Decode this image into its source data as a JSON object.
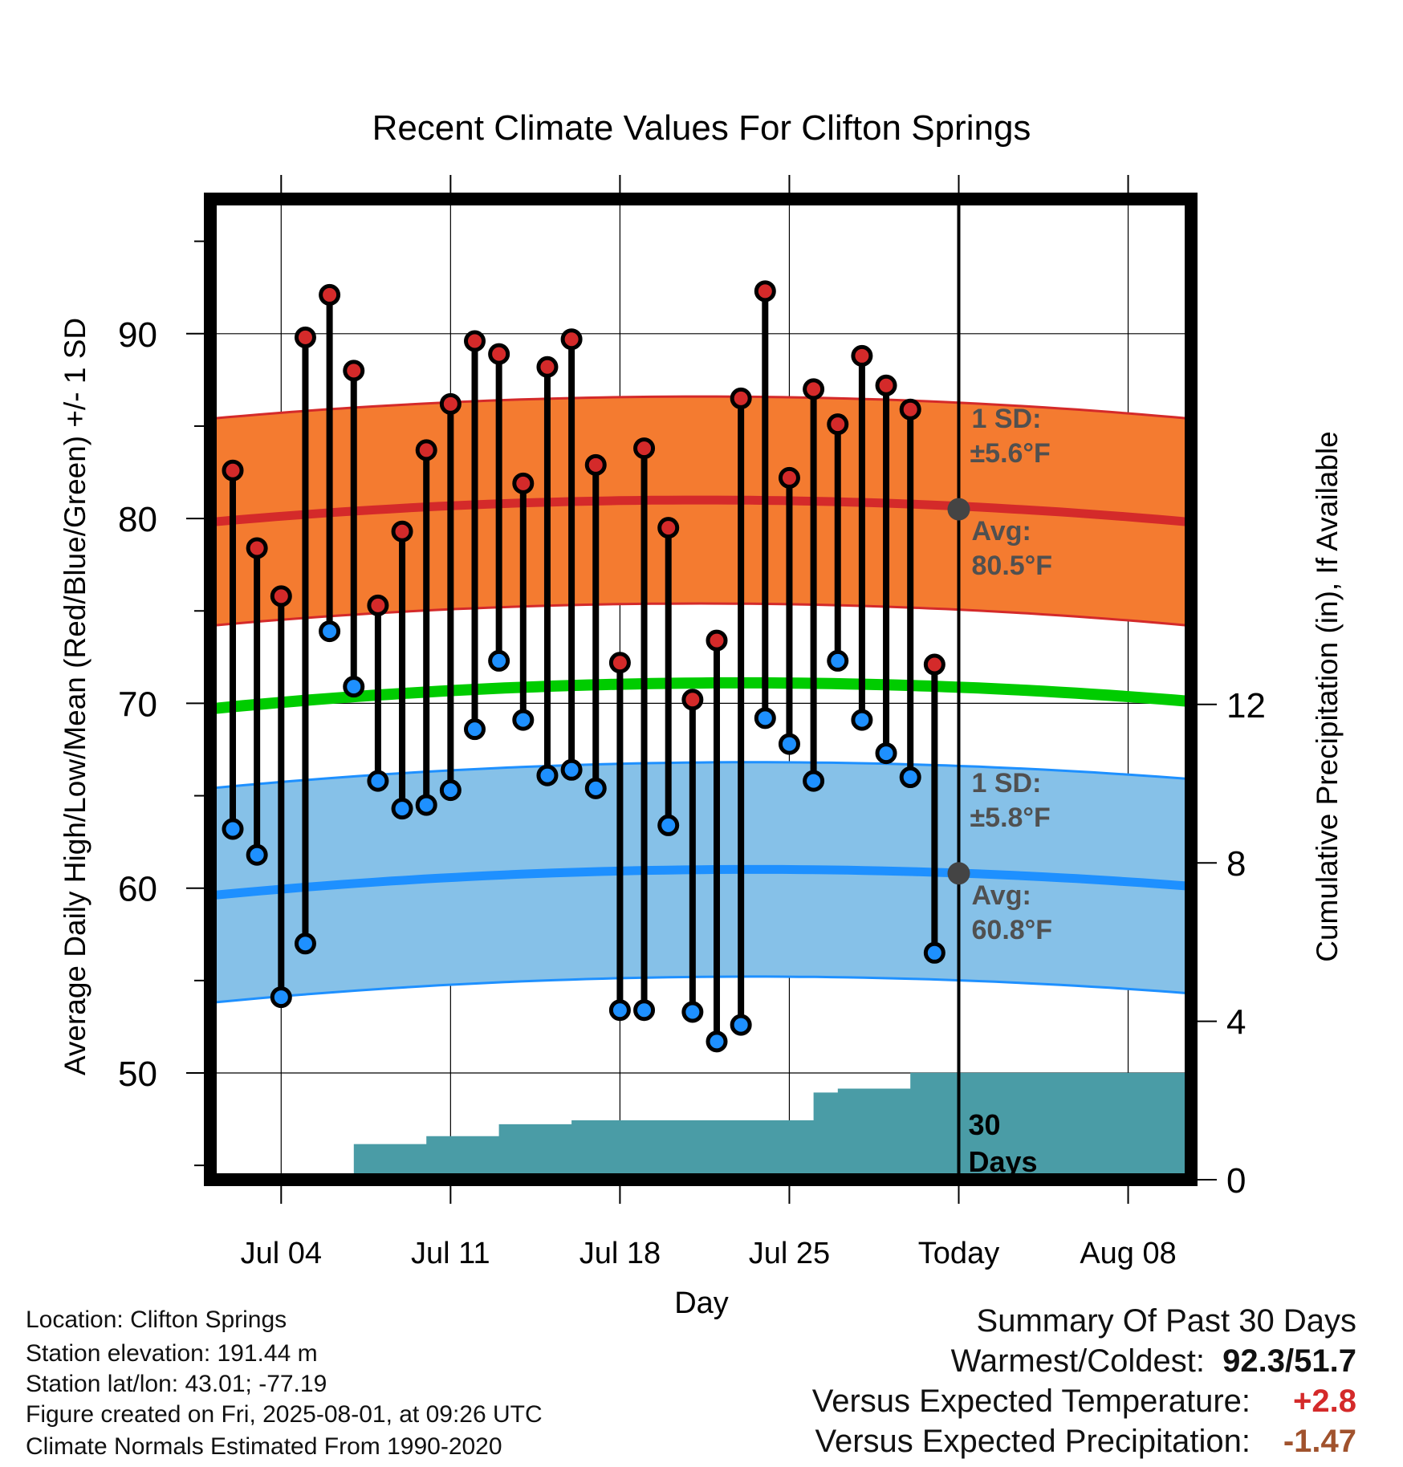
{
  "chart_data": {
    "type": "range-dot",
    "title": "Recent Climate Values For Clifton Springs",
    "xlabel": "Day",
    "ylabel": "Average Daily High/Low/Mean (Red/Blue/Green) +/- 1 SD",
    "y2label": "Cumulative Precipitation (in), If Available",
    "ylim": [
      44,
      97.5
    ],
    "y2lim": [
      0,
      21.4
    ],
    "y_ticks": [
      "50",
      "60",
      "70",
      "80",
      "90"
    ],
    "y2_ticks": [
      "0",
      "4",
      "8",
      "12"
    ],
    "x_ticks": [
      "Jul 04",
      "Jul 11",
      "Jul 18",
      "Jul 25",
      "Today",
      "Aug 08"
    ],
    "today_label": "Today",
    "days": [
      "Jul 02",
      "Jul 03",
      "Jul 04",
      "Jul 05",
      "Jul 06",
      "Jul 07",
      "Jul 08",
      "Jul 09",
      "Jul 10",
      "Jul 11",
      "Jul 12",
      "Jul 13",
      "Jul 14",
      "Jul 15",
      "Jul 16",
      "Jul 17",
      "Jul 18",
      "Jul 19",
      "Jul 20",
      "Jul 21",
      "Jul 22",
      "Jul 23",
      "Jul 24",
      "Jul 25",
      "Jul 26",
      "Jul 27",
      "Jul 28",
      "Jul 29",
      "Jul 30",
      "Jul 31"
    ],
    "series": [
      {
        "name": "High",
        "color": "#d42a2a",
        "values": [
          82.6,
          78.4,
          75.8,
          89.8,
          92.1,
          88.0,
          75.3,
          79.3,
          83.7,
          86.2,
          89.6,
          88.9,
          81.9,
          88.2,
          89.7,
          82.9,
          72.2,
          83.8,
          79.5,
          70.2,
          73.4,
          86.5,
          92.3,
          82.2,
          87.0,
          85.1,
          88.8,
          87.2,
          85.9,
          72.1
        ]
      },
      {
        "name": "Low",
        "color": "#1e90ff",
        "values": [
          63.2,
          61.8,
          54.1,
          57.0,
          73.9,
          70.9,
          65.8,
          64.3,
          64.5,
          65.3,
          68.6,
          72.3,
          69.1,
          66.1,
          66.4,
          65.4,
          53.4,
          53.4,
          63.4,
          53.3,
          51.7,
          52.6,
          69.2,
          67.8,
          65.8,
          72.3,
          69.1,
          67.3,
          66.0,
          56.5
        ]
      }
    ],
    "normals": {
      "high_avg_start": 79.8,
      "high_avg_mid": 81.0,
      "high_avg_end": 79.8,
      "high_sd": 5.6,
      "low_avg_start": 59.6,
      "low_avg_mid": 61.0,
      "low_avg_end": 60.1,
      "low_sd": 5.8,
      "mean_start": 69.7,
      "mean_mid": 71.1,
      "mean_end": 70.1,
      "high_color": "#f47b30",
      "high_line": "#d42a2a",
      "low_color": "#86c1e8",
      "low_line": "#1e90ff",
      "mean_color": "#00cc00"
    },
    "precip": {
      "color": "#4a9ca6",
      "cumulative": [
        0,
        0,
        0,
        0,
        0,
        0.9,
        0.9,
        0.9,
        1.1,
        1.1,
        1.1,
        1.4,
        1.4,
        1.4,
        1.5,
        1.5,
        1.5,
        1.5,
        1.5,
        1.5,
        1.5,
        1.5,
        1.5,
        1.5,
        2.2,
        2.3,
        2.3,
        2.3,
        2.7,
        2.7,
        2.7
      ]
    },
    "annotations": {
      "high_sd_line1": "1 SD:",
      "high_sd_line2": "±5.6°F",
      "high_avg_line1": "Avg:",
      "high_avg_line2": "80.5°F",
      "high_avg_value": 80.5,
      "low_sd_line1": "1 SD:",
      "low_sd_line2": "±5.8°F",
      "low_avg_line1": "Avg:",
      "low_avg_line2": "60.8°F",
      "low_avg_value": 60.8,
      "precip_line1": "30",
      "precip_line2": "Days"
    }
  },
  "info": {
    "location": "Location: Clifton Springs",
    "elevation": "Station elevation: 191.44 m",
    "latlon": "Station lat/lon: 43.01; -77.19",
    "created": "Figure created on Fri, 2025-08-01, at 09:26 UTC",
    "normals": "Climate Normals Estimated From 1990-2020"
  },
  "summary": {
    "title": "Summary Of Past 30 Days",
    "warm_label": "Warmest/Coldest:",
    "warm_value": "92.3/51.7",
    "temp_label": "Versus Expected Temperature:",
    "temp_value": "+2.8",
    "temp_color": "#d42a2a",
    "precip_label": "Versus Expected Precipitation:",
    "precip_value": "-1.47",
    "precip_color": "#a0522d"
  }
}
